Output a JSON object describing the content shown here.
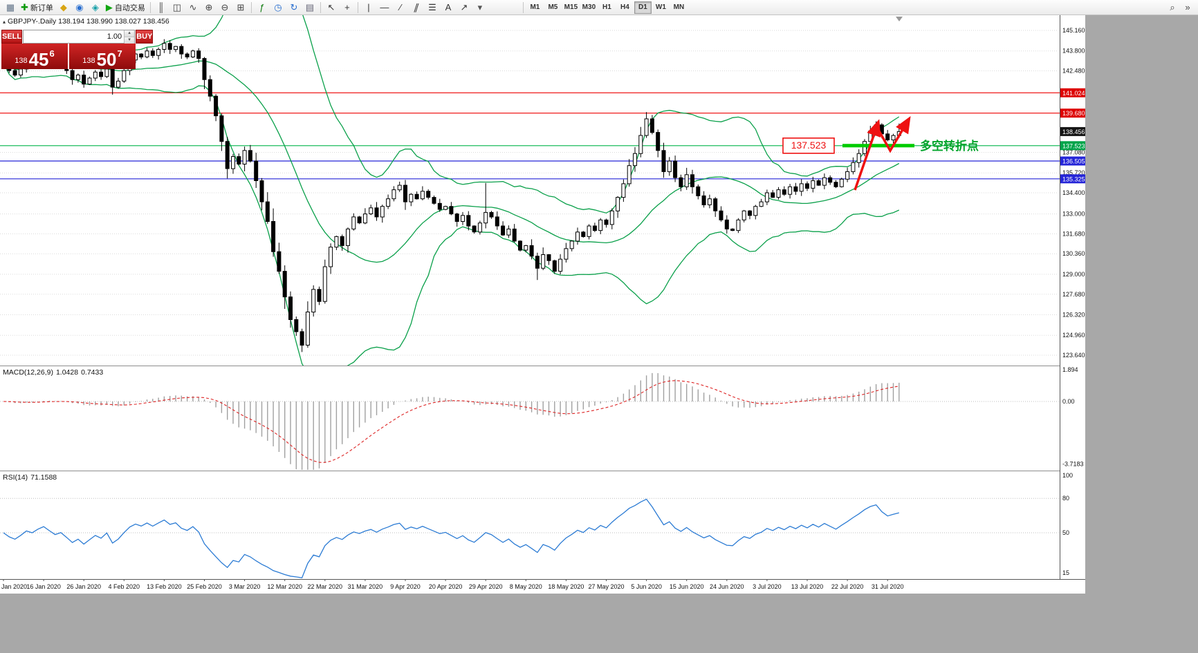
{
  "icons": {
    "triangle_up": "▴",
    "spin_up": "▲",
    "spin_down": "▼"
  },
  "toolbar": {
    "items": [
      {
        "type": "icon",
        "name": "chart-window-icon",
        "glyph": "▦",
        "color": "#5f7186"
      },
      {
        "type": "button",
        "name": "new-order-button",
        "icon_name": "new-order-icon",
        "glyph": "✚",
        "color": "#0c9a0c",
        "label": "新订单"
      },
      {
        "type": "icon",
        "name": "metaeditor-icon",
        "glyph": "◆",
        "color": "#d9a514"
      },
      {
        "type": "icon",
        "name": "market-watch-icon",
        "glyph": "◉",
        "color": "#2a6fd0"
      },
      {
        "type": "icon",
        "name": "navigator-icon",
        "glyph": "◈",
        "color": "#17a0a8"
      },
      {
        "type": "button",
        "name": "autotrading-button",
        "icon_name": "autotrading-icon",
        "glyph": "▶",
        "color": "#11a611",
        "label": "自动交易"
      },
      {
        "type": "sep"
      },
      {
        "type": "icon",
        "name": "bar-chart-icon",
        "glyph": "║",
        "color": "#444444"
      },
      {
        "type": "icon",
        "name": "candlestick-chart-icon",
        "glyph": "◫",
        "color": "#444444"
      },
      {
        "type": "icon",
        "name": "line-chart-icon",
        "glyph": "∿",
        "color": "#444444"
      },
      {
        "type": "icon",
        "name": "zoom-in-icon",
        "glyph": "⊕",
        "color": "#444444"
      },
      {
        "type": "icon",
        "name": "zoom-out-icon",
        "glyph": "⊖",
        "color": "#444444"
      },
      {
        "type": "icon",
        "name": "tile-windows-icon",
        "glyph": "⊞",
        "color": "#444444"
      },
      {
        "type": "sep"
      },
      {
        "type": "icon",
        "name": "indicators-icon",
        "glyph": "ƒ",
        "color": "#0c7a0c"
      },
      {
        "type": "icon",
        "name": "period-icon",
        "glyph": "◷",
        "color": "#2a6fd0"
      },
      {
        "type": "icon",
        "name": "refresh-icon",
        "glyph": "↻",
        "color": "#2a6fd0"
      },
      {
        "type": "icon",
        "name": "templates-icon",
        "glyph": "▤",
        "color": "#666677"
      },
      {
        "type": "sep"
      },
      {
        "type": "icon",
        "name": "cursor-icon",
        "glyph": "↖",
        "color": "#333333"
      },
      {
        "type": "icon",
        "name": "crosshair-icon",
        "glyph": "+",
        "color": "#333333"
      },
      {
        "type": "sep"
      },
      {
        "type": "icon",
        "name": "vertical-line-icon",
        "glyph": "|",
        "color": "#333333"
      },
      {
        "type": "icon",
        "name": "horizontal-line-icon",
        "glyph": "—",
        "color": "#333333"
      },
      {
        "type": "icon",
        "name": "trendline-icon",
        "glyph": "∕",
        "color": "#333333"
      },
      {
        "type": "icon",
        "name": "equidistant-channel-icon",
        "glyph": "∥",
        "color": "#333333",
        "skew": true
      },
      {
        "type": "icon",
        "name": "fibonacci-icon",
        "glyph": "☰",
        "color": "#333333"
      },
      {
        "type": "icon",
        "name": "text-icon",
        "glyph": "A",
        "color": "#333333"
      },
      {
        "type": "icon",
        "name": "arrows-icon",
        "glyph": "↗",
        "color": "#333333"
      },
      {
        "type": "icon",
        "name": "dropdown-arrow-icon",
        "glyph": "▾",
        "color": "#555555"
      },
      {
        "type": "space",
        "w": 46
      },
      {
        "type": "sep"
      },
      {
        "type": "tf",
        "label": "M1"
      },
      {
        "type": "tf",
        "label": "M5"
      },
      {
        "type": "tf",
        "label": "M15"
      },
      {
        "type": "tf",
        "label": "M30"
      },
      {
        "type": "tf",
        "label": "H1"
      },
      {
        "type": "tf",
        "label": "H4"
      },
      {
        "type": "tf",
        "label": "D1",
        "active": true
      },
      {
        "type": "tf",
        "label": "W1"
      },
      {
        "type": "tf",
        "label": "MN"
      }
    ],
    "right_items": [
      {
        "type": "icon",
        "name": "search-icon",
        "glyph": "⌕",
        "color": "#444444"
      },
      {
        "type": "icon",
        "name": "toolbar-overflow-icon",
        "glyph": "»",
        "color": "#444444"
      }
    ]
  },
  "chart": {
    "symbol": "GBPJPY-.Daily",
    "ohlc_text": "138.194 138.990 138.027 138.456",
    "trade_widget": {
      "sell_label": "SELL",
      "buy_label": "BUY",
      "volume": "1.00",
      "sell_price_prefix": "138",
      "sell_price_big": "45",
      "sell_price_sup": "6",
      "buy_price_prefix": "138",
      "buy_price_big": "50",
      "buy_price_sup": "7"
    },
    "macd": {
      "name": "MACD(12,26,9)",
      "main_value": "1.0428",
      "signal_value": "0.7433"
    },
    "rsi": {
      "name": "RSI(14)",
      "value": "71.1588"
    },
    "annotations": {
      "level_box_text": "137.523",
      "turning_point_text": "多空转折点",
      "box_color": "#ee1111",
      "arrow_color": "#ee1111",
      "zone_color": "#00cc00",
      "text_color": "#00a32a"
    }
  },
  "chart_data": {
    "type": "candlestick",
    "symbol": "GBPJPY",
    "timeframe": "Daily",
    "current_ohlc": {
      "open": 138.194,
      "high": 138.99,
      "low": 138.027,
      "close": 138.456
    },
    "bid": "138.456",
    "ask": "138.507",
    "price_top": 145.16,
    "price_bottom": 123.64,
    "first_candle_open": 143.3,
    "closes": [
      143.0,
      142.5,
      142.2,
      142.6,
      143.1,
      142.9,
      143.3,
      143.6,
      143.2,
      142.8,
      143.0,
      142.5,
      141.9,
      142.2,
      141.6,
      142.0,
      142.4,
      142.1,
      142.6,
      141.4,
      141.8,
      142.5,
      143.2,
      143.6,
      143.4,
      143.8,
      143.5,
      143.9,
      144.3,
      143.9,
      144.1,
      143.6,
      143.4,
      143.8,
      143.3,
      141.9,
      140.8,
      139.5,
      137.8,
      136.0,
      136.8,
      136.3,
      137.2,
      136.5,
      135.2,
      133.8,
      132.5,
      130.5,
      129.2,
      127.5,
      126.0,
      125.2,
      124.3,
      126.5,
      128.0,
      127.2,
      129.5,
      130.8,
      131.5,
      130.9,
      132.0,
      132.8,
      132.4,
      133.0,
      133.4,
      132.8,
      133.5,
      134.0,
      134.6,
      134.9,
      133.8,
      134.3,
      134.0,
      134.5,
      134.1,
      133.7,
      133.3,
      133.5,
      133.0,
      132.5,
      132.9,
      132.2,
      131.8,
      132.4,
      133.1,
      132.8,
      132.2,
      131.6,
      132.0,
      131.2,
      130.6,
      130.9,
      130.2,
      129.4,
      130.3,
      129.9,
      129.2,
      130.0,
      130.7,
      131.2,
      131.8,
      131.5,
      132.2,
      131.9,
      132.6,
      132.3,
      133.2,
      134.1,
      135.0,
      136.2,
      137.0,
      138.2,
      139.3,
      138.4,
      137.2,
      135.8,
      136.5,
      135.4,
      134.8,
      135.6,
      134.8,
      134.2,
      133.6,
      134.0,
      133.2,
      132.6,
      132.0,
      131.9,
      132.6,
      133.2,
      132.9,
      133.5,
      133.8,
      134.4,
      134.1,
      134.6,
      134.3,
      134.8,
      134.5,
      135.0,
      134.7,
      135.2,
      134.9,
      135.4,
      135.1,
      134.8,
      135.3,
      135.8,
      136.4,
      137.0,
      137.8,
      138.5,
      138.9,
      138.3,
      137.9,
      138.194,
      138.456
    ],
    "wick_overrides": {
      "19": {
        "l": 140.9
      },
      "39": {
        "l": 135.35
      },
      "52": {
        "l": 123.85
      },
      "84": {
        "h": 135.05
      },
      "93": {
        "l": 128.62
      },
      "112": {
        "h": 139.75
      },
      "156": {
        "h": 138.99,
        "l": 138.027
      }
    },
    "indicators": {
      "bollinger": {
        "period": 20,
        "deviation": 2
      },
      "macd": {
        "fast": 12,
        "slow": 26,
        "signal": 9
      },
      "rsi": {
        "period": 14
      }
    },
    "levels": [
      {
        "price": 141.024,
        "color": "#ee0000"
      },
      {
        "price": 139.68,
        "color": "#ee0000"
      },
      {
        "price": 137.523,
        "color": "#00b44a"
      },
      {
        "price": 136.505,
        "color": "#2525d8"
      },
      {
        "price": 135.325,
        "color": "#2525d8"
      }
    ],
    "axis": {
      "price_plain": [
        {
          "text": "145.160",
          "price": 145.16
        },
        {
          "text": "143.800",
          "price": 143.8
        },
        {
          "text": "142.480",
          "price": 142.48
        },
        {
          "text": "137.080",
          "price": 137.08
        },
        {
          "text": "135.720",
          "price": 135.72
        },
        {
          "text": "134.400",
          "price": 134.4
        },
        {
          "text": "133.000",
          "price": 133.0
        },
        {
          "text": "131.680",
          "price": 131.68
        },
        {
          "text": "130.360",
          "price": 130.36
        },
        {
          "text": "129.000",
          "price": 129.0
        },
        {
          "text": "127.680",
          "price": 127.68
        },
        {
          "text": "126.320",
          "price": 126.32
        },
        {
          "text": "124.960",
          "price": 124.96
        },
        {
          "text": "123.640",
          "price": 123.64
        }
      ],
      "price_tags": [
        {
          "text": "141.024",
          "price": 141.024,
          "bg": "#dd0000"
        },
        {
          "text": "139.680",
          "price": 139.68,
          "bg": "#dd0000"
        },
        {
          "text": "138.456",
          "price": 138.456,
          "bg": "#151515"
        },
        {
          "text": "137.523",
          "price": 137.523,
          "bg": "#00a44a"
        },
        {
          "text": "136.505",
          "price": 136.505,
          "bg": "#2525d8"
        },
        {
          "text": "135.325",
          "price": 135.325,
          "bg": "#2525d8"
        }
      ],
      "macd_labels": [
        {
          "text": "1.894",
          "v": 1.894
        },
        {
          "text": "0.00",
          "v": 0,
          "line": true
        },
        {
          "text": "-3.7183",
          "v": -3.7183
        }
      ],
      "rsi_labels": [
        {
          "text": "100",
          "v": 100
        },
        {
          "text": "80",
          "v": 80,
          "line": true
        },
        {
          "text": "50",
          "v": 50,
          "line": true
        },
        {
          "text": "15",
          "v": 15
        }
      ],
      "dates": [
        {
          "label": "Jan 2020",
          "i": 0
        },
        {
          "label": "16 Jan 2020",
          "i": 7
        },
        {
          "label": "26 Jan 2020",
          "i": 14
        },
        {
          "label": "4 Feb 2020",
          "i": 21
        },
        {
          "label": "13 Feb 2020",
          "i": 28
        },
        {
          "label": "25 Feb 2020",
          "i": 35
        },
        {
          "label": "3 Mar 2020",
          "i": 42
        },
        {
          "label": "12 Mar 2020",
          "i": 49
        },
        {
          "label": "22 Mar 2020",
          "i": 56
        },
        {
          "label": "31 Mar 2020",
          "i": 63
        },
        {
          "label": "9 Apr 2020",
          "i": 70
        },
        {
          "label": "20 Apr 2020",
          "i": 77
        },
        {
          "label": "29 Apr 2020",
          "i": 84
        },
        {
          "label": "8 May 2020",
          "i": 91
        },
        {
          "label": "18 May 2020",
          "i": 98
        },
        {
          "label": "27 May 2020",
          "i": 105
        },
        {
          "label": "5 Jun 2020",
          "i": 112
        },
        {
          "label": "15 Jun 2020",
          "i": 119
        },
        {
          "label": "24 Jun 2020",
          "i": 126
        },
        {
          "label": "3 Jul 2020",
          "i": 133
        },
        {
          "label": "13 Jul 2020",
          "i": 140
        },
        {
          "label": "22 Jul 2020",
          "i": 147
        },
        {
          "label": "31 Jul 2020",
          "i": 154
        }
      ]
    },
    "colors": {
      "bands": "#0aa04a",
      "macd_hist": "#a0a0a0",
      "macd_signal": "#dd2222",
      "rsi": "#2b7bd4",
      "up_candle": "#ffffff",
      "down_candle": "#000000",
      "grid": "#dadada"
    }
  }
}
